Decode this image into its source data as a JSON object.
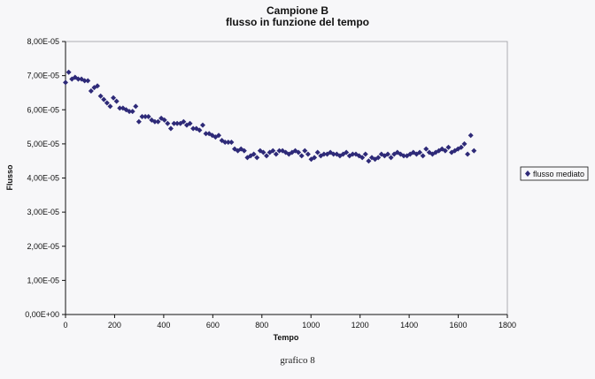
{
  "chart_data": {
    "type": "scatter",
    "title": "Campione B",
    "subtitle": "flusso in funzione del tempo",
    "xlabel": "Tempo",
    "ylabel": "Flusso",
    "xlim": [
      0,
      1800
    ],
    "ylim": [
      0,
      8e-05
    ],
    "xticks": [
      "0",
      "200",
      "400",
      "600",
      "800",
      "1000",
      "1200",
      "1400",
      "1600",
      "1800"
    ],
    "yticks": [
      "0,00E+00",
      "1,00E-05",
      "2,00E-05",
      "3,00E-05",
      "4,00E-05",
      "5,00E-05",
      "6,00E-05",
      "7,00E-05",
      "8,00E-05"
    ],
    "grid": false,
    "legend_position": "right",
    "series": [
      {
        "name": "flusso mediato",
        "color": "#2e2a78",
        "marker": "diamond",
        "x": [
          0,
          13,
          26,
          39,
          52,
          65,
          78,
          91,
          104,
          117,
          130,
          143,
          156,
          169,
          182,
          195,
          208,
          221,
          234,
          247,
          260,
          273,
          286,
          299,
          312,
          325,
          338,
          351,
          364,
          377,
          390,
          403,
          416,
          429,
          442,
          455,
          468,
          481,
          494,
          507,
          520,
          533,
          546,
          559,
          572,
          585,
          598,
          611,
          624,
          637,
          650,
          663,
          676,
          689,
          702,
          715,
          728,
          741,
          754,
          767,
          780,
          793,
          806,
          819,
          832,
          845,
          858,
          871,
          884,
          897,
          910,
          923,
          936,
          949,
          962,
          975,
          988,
          1001,
          1014,
          1027,
          1040,
          1053,
          1066,
          1079,
          1092,
          1105,
          1118,
          1131,
          1144,
          1157,
          1170,
          1183,
          1196,
          1209,
          1222,
          1235,
          1248,
          1261,
          1274,
          1287,
          1300,
          1313,
          1326,
          1339,
          1352,
          1365,
          1378,
          1391,
          1404,
          1417,
          1430,
          1443,
          1456,
          1469,
          1482,
          1495,
          1508,
          1521,
          1534,
          1547,
          1560,
          1573,
          1586,
          1599,
          1612,
          1625,
          1638,
          1651,
          1664
        ],
        "y": [
          6.8e-05,
          7.1e-05,
          6.9e-05,
          6.95e-05,
          6.9e-05,
          6.9e-05,
          6.85e-05,
          6.85e-05,
          6.55e-05,
          6.65e-05,
          6.7e-05,
          6.4e-05,
          6.3e-05,
          6.2e-05,
          6.1e-05,
          6.35e-05,
          6.25e-05,
          6.05e-05,
          6.05e-05,
          6e-05,
          5.95e-05,
          5.95e-05,
          6.1e-05,
          5.65e-05,
          5.8e-05,
          5.8e-05,
          5.8e-05,
          5.7e-05,
          5.65e-05,
          5.65e-05,
          5.75e-05,
          5.7e-05,
          5.6e-05,
          5.45e-05,
          5.6e-05,
          5.6e-05,
          5.6e-05,
          5.65e-05,
          5.55e-05,
          5.6e-05,
          5.45e-05,
          5.45e-05,
          5.4e-05,
          5.55e-05,
          5.3e-05,
          5.3e-05,
          5.25e-05,
          5.2e-05,
          5.25e-05,
          5.1e-05,
          5.05e-05,
          5.05e-05,
          5.05e-05,
          4.85e-05,
          4.8e-05,
          4.85e-05,
          4.8e-05,
          4.6e-05,
          4.65e-05,
          4.7e-05,
          4.6e-05,
          4.8e-05,
          4.75e-05,
          4.65e-05,
          4.75e-05,
          4.8e-05,
          4.7e-05,
          4.8e-05,
          4.8e-05,
          4.75e-05,
          4.7e-05,
          4.75e-05,
          4.8e-05,
          4.75e-05,
          4.65e-05,
          4.8e-05,
          4.7e-05,
          4.55e-05,
          4.6e-05,
          4.75e-05,
          4.65e-05,
          4.7e-05,
          4.7e-05,
          4.75e-05,
          4.7e-05,
          4.7e-05,
          4.65e-05,
          4.7e-05,
          4.75e-05,
          4.65e-05,
          4.7e-05,
          4.7e-05,
          4.65e-05,
          4.6e-05,
          4.7e-05,
          4.5e-05,
          4.6e-05,
          4.55e-05,
          4.6e-05,
          4.7e-05,
          4.65e-05,
          4.7e-05,
          4.6e-05,
          4.7e-05,
          4.75e-05,
          4.7e-05,
          4.65e-05,
          4.65e-05,
          4.7e-05,
          4.75e-05,
          4.7e-05,
          4.75e-05,
          4.65e-05,
          4.85e-05,
          4.75e-05,
          4.7e-05,
          4.75e-05,
          4.8e-05,
          4.85e-05,
          4.8e-05,
          4.9e-05,
          4.75e-05,
          4.8e-05,
          4.85e-05,
          4.9e-05,
          5e-05,
          4.7e-05,
          5.25e-05,
          4.8e-05
        ]
      }
    ],
    "caption": "grafico 8"
  }
}
